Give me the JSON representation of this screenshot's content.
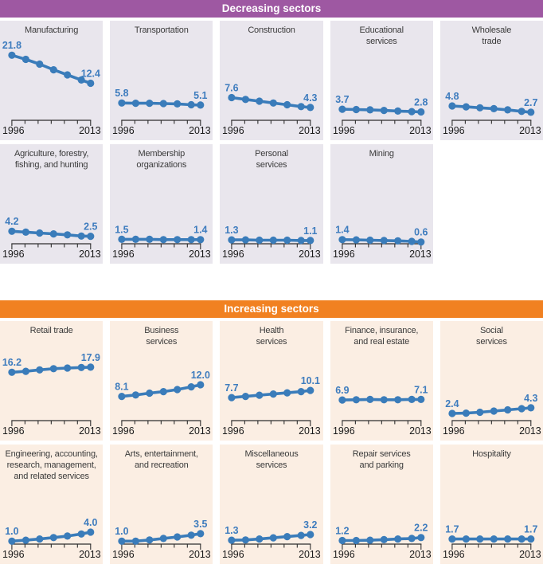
{
  "colors": {
    "decreasing_header": "#9e58a2",
    "increasing_header": "#f18121",
    "decreasing_panel_bg": "#e9e6ed",
    "increasing_panel_bg": "#fbeee3",
    "line": "#3a7cba",
    "value_label": "#3e7cbe",
    "axis": "#2e2e2e",
    "title_text": "#3b3b3b",
    "year_label": "#1a1a1a",
    "header_text": "#ffffff"
  },
  "chart_data": [
    {
      "type": "line",
      "group_title": "Decreasing sectors",
      "x": [
        1996,
        1999,
        2002,
        2005,
        2008,
        2011,
        2013
      ],
      "x_tick_labels": [
        "1996",
        "2013"
      ],
      "ylim": [
        0,
        33
      ],
      "shared_y_scale": true,
      "legend": "none",
      "grid": false,
      "series": [
        {
          "name": "Manufacturing",
          "title_lines": [
            "Manufacturing"
          ],
          "start_label": "21.8",
          "end_label": "12.4",
          "values": [
            21.8,
            20.4,
            18.8,
            16.9,
            15.2,
            13.5,
            12.4
          ]
        },
        {
          "name": "Transportation",
          "title_lines": [
            "Transportation"
          ],
          "start_label": "5.8",
          "end_label": "5.1",
          "values": [
            5.8,
            5.7,
            5.7,
            5.6,
            5.5,
            5.2,
            5.1
          ]
        },
        {
          "name": "Construction",
          "title_lines": [
            "Construction"
          ],
          "start_label": "7.6",
          "end_label": "4.3",
          "values": [
            7.6,
            7.0,
            6.4,
            5.8,
            5.2,
            4.6,
            4.3
          ]
        },
        {
          "name": "Educational services",
          "title_lines": [
            "Educational",
            "services"
          ],
          "start_label": "3.7",
          "end_label": "2.8",
          "values": [
            3.7,
            3.6,
            3.5,
            3.3,
            3.1,
            2.9,
            2.8
          ]
        },
        {
          "name": "Wholesale trade",
          "title_lines": [
            "Wholesale",
            "trade"
          ],
          "start_label": "4.8",
          "end_label": "2.7",
          "values": [
            4.8,
            4.5,
            4.2,
            3.9,
            3.5,
            3.0,
            2.7
          ]
        },
        {
          "name": "Agriculture, forestry, fishing, and hunting",
          "title_lines": [
            "Agriculture, forestry,",
            "fishing, and hunting"
          ],
          "start_label": "4.2",
          "end_label": "2.5",
          "values": [
            4.2,
            3.9,
            3.6,
            3.3,
            3.0,
            2.6,
            2.5
          ]
        },
        {
          "name": "Membership organizations",
          "title_lines": [
            "Membership",
            "organizations"
          ],
          "start_label": "1.5",
          "end_label": "1.4",
          "values": [
            1.5,
            1.5,
            1.5,
            1.4,
            1.4,
            1.4,
            1.4
          ]
        },
        {
          "name": "Personal services",
          "title_lines": [
            "Personal",
            "services"
          ],
          "start_label": "1.3",
          "end_label": "1.1",
          "values": [
            1.3,
            1.3,
            1.2,
            1.2,
            1.2,
            1.1,
            1.1
          ]
        },
        {
          "name": "Mining",
          "title_lines": [
            "Mining"
          ],
          "start_label": "1.4",
          "end_label": "0.6",
          "values": [
            1.4,
            1.3,
            1.2,
            1.1,
            1.0,
            0.8,
            0.6
          ]
        }
      ]
    },
    {
      "type": "line",
      "group_title": "Increasing sectors",
      "x": [
        1996,
        1999,
        2002,
        2005,
        2008,
        2011,
        2013
      ],
      "x_tick_labels": [
        "1996",
        "2013"
      ],
      "ylim": [
        0,
        33
      ],
      "shared_y_scale": true,
      "legend": "none",
      "grid": false,
      "series": [
        {
          "name": "Retail trade",
          "title_lines": [
            "Retail trade"
          ],
          "start_label": "16.2",
          "end_label": "17.9",
          "values": [
            16.2,
            16.5,
            17.0,
            17.4,
            17.6,
            17.8,
            17.9
          ]
        },
        {
          "name": "Business services",
          "title_lines": [
            "Business",
            "services"
          ],
          "start_label": "8.1",
          "end_label": "12.0",
          "values": [
            8.1,
            8.6,
            9.2,
            9.7,
            10.4,
            11.3,
            12.0
          ]
        },
        {
          "name": "Health services",
          "title_lines": [
            "Health",
            "services"
          ],
          "start_label": "7.7",
          "end_label": "10.1",
          "values": [
            7.7,
            8.1,
            8.5,
            8.9,
            9.3,
            9.7,
            10.1
          ]
        },
        {
          "name": "Finance, insurance, and real estate",
          "title_lines": [
            "Finance, insurance,",
            "and real estate"
          ],
          "start_label": "6.9",
          "end_label": "7.1",
          "values": [
            6.9,
            7.0,
            7.1,
            7.0,
            7.0,
            7.1,
            7.1
          ]
        },
        {
          "name": "Social services",
          "title_lines": [
            "Social",
            "services"
          ],
          "start_label": "2.4",
          "end_label": "4.3",
          "values": [
            2.4,
            2.5,
            2.8,
            3.2,
            3.6,
            4.0,
            4.3
          ]
        },
        {
          "name": "Engineering, accounting, research, management, and related services",
          "title_lines": [
            "Engineering, accounting,",
            "research, management,",
            "and related services"
          ],
          "start_label": "1.0",
          "end_label": "4.0",
          "values": [
            1.0,
            1.3,
            1.7,
            2.2,
            2.7,
            3.4,
            4.0
          ]
        },
        {
          "name": "Arts, entertainment, and recreation",
          "title_lines": [
            "Arts, entertainment,",
            "and recreation"
          ],
          "start_label": "1.0",
          "end_label": "3.5",
          "values": [
            1.0,
            1.0,
            1.4,
            1.9,
            2.4,
            3.0,
            3.5
          ]
        },
        {
          "name": "Miscellaneous services",
          "title_lines": [
            "Miscellaneous",
            "services"
          ],
          "start_label": "1.3",
          "end_label": "3.2",
          "values": [
            1.3,
            1.4,
            1.7,
            2.1,
            2.5,
            2.9,
            3.2
          ]
        },
        {
          "name": "Repair services and parking",
          "title_lines": [
            "Repair services",
            "and parking"
          ],
          "start_label": "1.2",
          "end_label": "2.2",
          "values": [
            1.2,
            1.2,
            1.3,
            1.5,
            1.7,
            1.9,
            2.2
          ]
        },
        {
          "name": "Hospitality",
          "title_lines": [
            "Hospitality"
          ],
          "start_label": "1.7",
          "end_label": "1.7",
          "values": [
            1.7,
            1.7,
            1.7,
            1.7,
            1.7,
            1.7,
            1.7
          ]
        }
      ]
    }
  ]
}
